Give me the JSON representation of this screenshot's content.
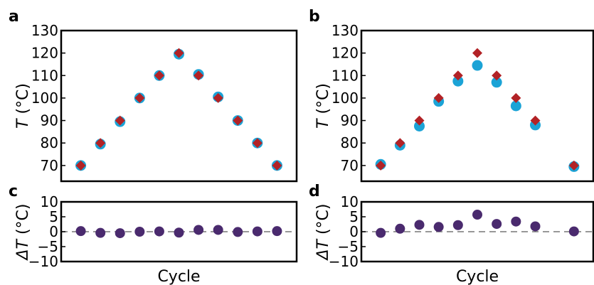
{
  "colors": {
    "measured": "#1ba3d6",
    "setpoint": "#b22226",
    "delta": "#4a2a6e",
    "zero_line": "#777777"
  },
  "chart_data": [
    {
      "panel": "a",
      "type": "scatter",
      "ylabel": "T (°C)",
      "ylabel_var": "T",
      "ylabel_unit": " (°C)",
      "ylim": [
        63,
        130
      ],
      "yticks": [
        70,
        80,
        90,
        100,
        110,
        120,
        130
      ],
      "xlim": [
        0,
        12
      ],
      "x": [
        1,
        2,
        3,
        4,
        5,
        6,
        7,
        8,
        9,
        10,
        11
      ],
      "series": [
        {
          "marker": "circle",
          "color": "#1ba3d6",
          "values": [
            70,
            79.5,
            89.5,
            100,
            110,
            119.5,
            110.5,
            100.5,
            90,
            80,
            70
          ]
        },
        {
          "marker": "diamond",
          "color": "#b22226",
          "values": [
            70,
            80,
            90,
            100,
            110,
            120,
            110,
            100,
            90,
            80,
            70
          ]
        }
      ],
      "grid": false
    },
    {
      "panel": "b",
      "type": "scatter",
      "ylabel": "T (°C)",
      "ylabel_var": "T",
      "ylabel_unit": " (°C)",
      "ylim": [
        63,
        130
      ],
      "yticks": [
        70,
        80,
        90,
        100,
        110,
        120,
        130
      ],
      "xlim": [
        0,
        12
      ],
      "x": [
        1,
        2,
        3,
        4,
        5,
        6,
        7,
        8,
        9,
        11
      ],
      "series": [
        {
          "marker": "circle",
          "color": "#1ba3d6",
          "values": [
            70.5,
            79,
            87.5,
            98.5,
            107.5,
            114.5,
            107,
            96.5,
            88,
            69.5
          ]
        },
        {
          "marker": "diamond",
          "color": "#b22226",
          "values": [
            70,
            80,
            90,
            100,
            110,
            120,
            110,
            100,
            90,
            70
          ]
        }
      ],
      "grid": false
    },
    {
      "panel": "c",
      "type": "scatter",
      "ylabel": "ΔT (°C)",
      "ylabel_var": "ΔT",
      "ylabel_unit": " (°C)",
      "xlabel": "Cycle",
      "ylim": [
        -10,
        10
      ],
      "yticks": [
        -10,
        -5,
        0,
        5,
        10
      ],
      "ytick_labels": [
        "−10",
        "−5",
        "0",
        "5",
        "10"
      ],
      "xlim": [
        0,
        12
      ],
      "x": [
        1,
        2,
        3,
        4,
        5,
        6,
        7,
        8,
        9,
        10,
        11
      ],
      "series": [
        {
          "marker": "circle",
          "color": "#4a2a6e",
          "values": [
            0.2,
            -0.4,
            -0.5,
            0.0,
            0.1,
            -0.3,
            0.6,
            0.6,
            -0.1,
            0.1,
            0.2
          ]
        }
      ],
      "zero_line": true,
      "grid": false
    },
    {
      "panel": "d",
      "type": "scatter",
      "ylabel": "ΔT (°C)",
      "ylabel_var": "ΔT",
      "ylabel_unit": " (°C)",
      "xlabel": "Cycle",
      "ylim": [
        -10,
        10
      ],
      "yticks": [
        -10,
        -5,
        0,
        5,
        10
      ],
      "ytick_labels": [
        "−10",
        "−5",
        "0",
        "5",
        "10"
      ],
      "xlim": [
        0,
        12
      ],
      "x": [
        1,
        2,
        3,
        4,
        5,
        6,
        7,
        8,
        9,
        11
      ],
      "series": [
        {
          "marker": "circle",
          "color": "#4a2a6e",
          "values": [
            -0.4,
            1.0,
            2.3,
            1.6,
            2.2,
            5.7,
            2.6,
            3.4,
            1.8,
            0.1
          ]
        }
      ],
      "zero_line": true,
      "grid": false
    }
  ]
}
